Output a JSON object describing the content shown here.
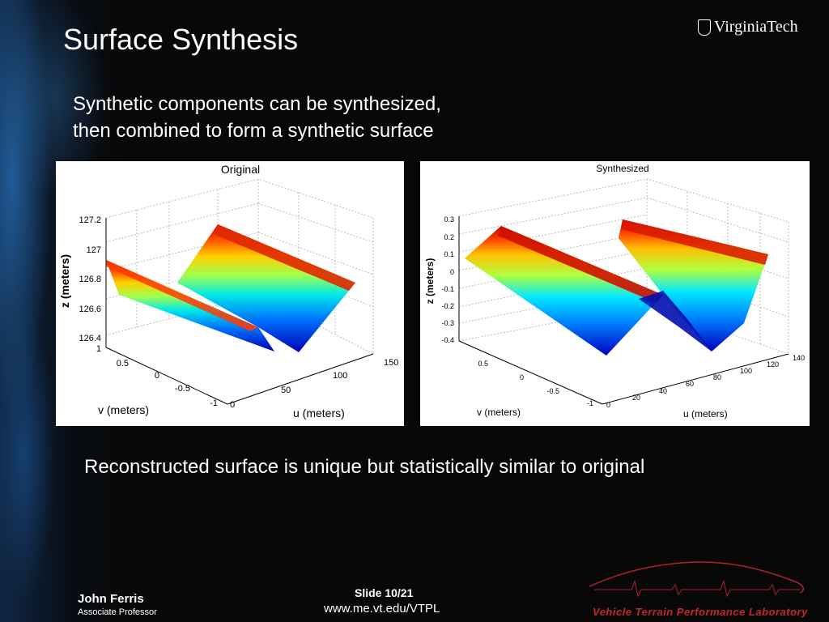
{
  "slide": {
    "title": "Surface Synthesis",
    "brand": "VirginiaTech",
    "subtitle_lines": [
      "Synthetic components can be synthesized,",
      "then combined to form a synthetic surface"
    ],
    "caption": "Reconstructed surface is unique but statistically similar to original",
    "author_name": "John Ferris",
    "author_title": "Associate Professor",
    "slide_number": "Slide 10/21",
    "url": "www.me.vt.edu/VTPL",
    "lab_name": "Vehicle Terrain Performance Laboratory"
  },
  "chart_data": [
    {
      "type": "surface",
      "title": "Original",
      "xlabel": "u (meters)",
      "ylabel": "v (meters)",
      "zlabel": "z (meters)",
      "x_ticks": [
        "0",
        "50",
        "100",
        "150"
      ],
      "y_ticks": [
        "-1",
        "-0.5",
        "0",
        "0.5",
        "1"
      ],
      "z_ticks": [
        "126.4",
        "126.6",
        "126.8",
        "127",
        "127.2"
      ],
      "xlim": [
        0,
        150
      ],
      "ylim": [
        -1,
        1
      ],
      "zlim": [
        126.4,
        127.2
      ],
      "colormap": "jet",
      "grid": true
    },
    {
      "type": "surface",
      "title": "Synthesized",
      "xlabel": "u (meters)",
      "ylabel": "v (meters)",
      "zlabel": "z (meters)",
      "x_ticks": [
        "0",
        "20",
        "40",
        "60",
        "80",
        "100",
        "120",
        "140"
      ],
      "y_ticks": [
        "-1",
        "-0.5",
        "0",
        "0.5"
      ],
      "z_ticks": [
        "-0.4",
        "-0.3",
        "-0.2",
        "-0.1",
        "0",
        "0.1",
        "0.2",
        "0.3"
      ],
      "xlim": [
        0,
        140
      ],
      "ylim": [
        -1,
        1
      ],
      "zlim": [
        -0.4,
        0.3
      ],
      "colormap": "jet",
      "grid": true
    }
  ],
  "colors": {
    "accent_red": "#c22a2a",
    "jet_low": "#0000c8",
    "jet_mid": "#00e0e0",
    "jet_high": "#e00000"
  },
  "icons": [
    "virginia-tech-seal-icon",
    "vtpl-car-logo-icon"
  ]
}
